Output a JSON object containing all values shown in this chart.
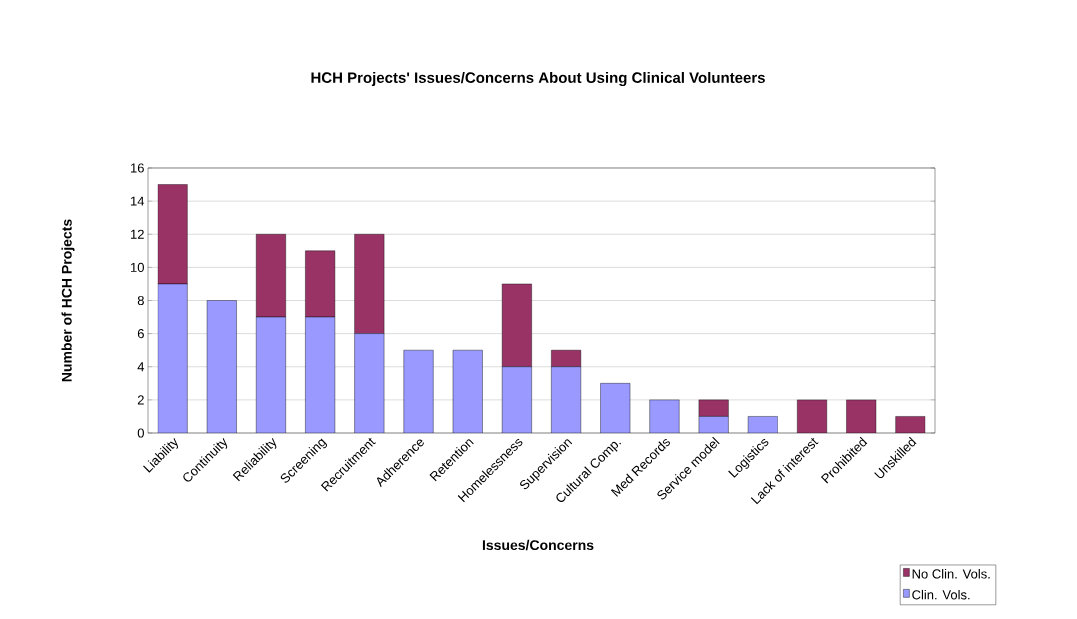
{
  "chart_data": {
    "type": "bar",
    "title": "HCH Projects' Issues/Concerns About Using Clinical Volunteers",
    "xlabel": "Issues/Concerns",
    "ylabel": "Number of HCH Projects",
    "categories": [
      "Liability",
      "Continuity",
      "Reliability",
      "Screening",
      "Recruitment",
      "Adherence",
      "Retention",
      "Homelessness",
      "Supervision",
      "Cultural Comp.",
      "Med Records",
      "Service model",
      "Logistics",
      "Lack of interest",
      "Prohibited",
      "Unskilled"
    ],
    "series": [
      {
        "name": "Clin. Vols.",
        "color": "#9999ff",
        "values": [
          9,
          8,
          7,
          7,
          6,
          5,
          5,
          4,
          4,
          3,
          2,
          1,
          1,
          0,
          0,
          0
        ]
      },
      {
        "name": "No Clin. Vols.",
        "color": "#993366",
        "values": [
          6,
          0,
          5,
          4,
          6,
          0,
          0,
          5,
          1,
          0,
          0,
          1,
          0,
          2,
          2,
          1
        ]
      }
    ],
    "stacked": true,
    "ylim": [
      0,
      16
    ],
    "yticks": [
      0,
      2,
      4,
      6,
      8,
      10,
      12,
      14,
      16
    ],
    "grid": "y",
    "legend": "bottom right"
  }
}
